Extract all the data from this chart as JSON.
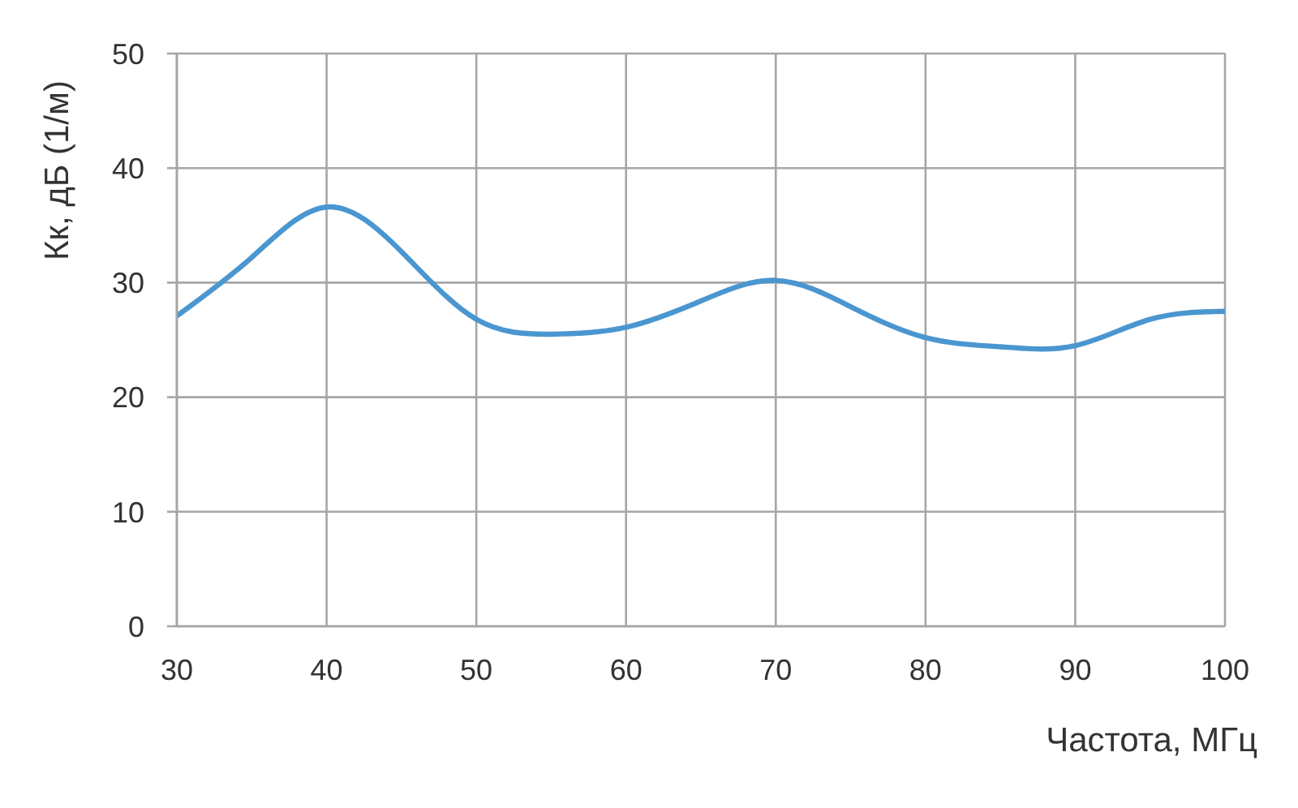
{
  "chart_data": {
    "type": "line",
    "xlabel": "Частота, МГц",
    "ylabel": "Кк, дБ (1/м)",
    "x": [
      30,
      35,
      40,
      45,
      50,
      55,
      60,
      65,
      70,
      75,
      80,
      85,
      90,
      95,
      100
    ],
    "series": [
      {
        "color": "#4a96d0",
        "values": [
          27.1,
          32.2,
          36.6,
          32.7,
          26.8,
          25.5,
          26.1,
          28.4,
          30.2,
          27.9,
          25.2,
          24.4,
          24.5,
          26.8,
          27.5
        ]
      }
    ],
    "xlim": [
      30,
      100
    ],
    "xticks": [
      30,
      40,
      50,
      60,
      70,
      80,
      90,
      100
    ],
    "ylim": [
      0,
      50
    ],
    "yticks": [
      0,
      10,
      20,
      30,
      40,
      50
    ],
    "grid": true,
    "marker": "none",
    "line_style": "solid"
  }
}
